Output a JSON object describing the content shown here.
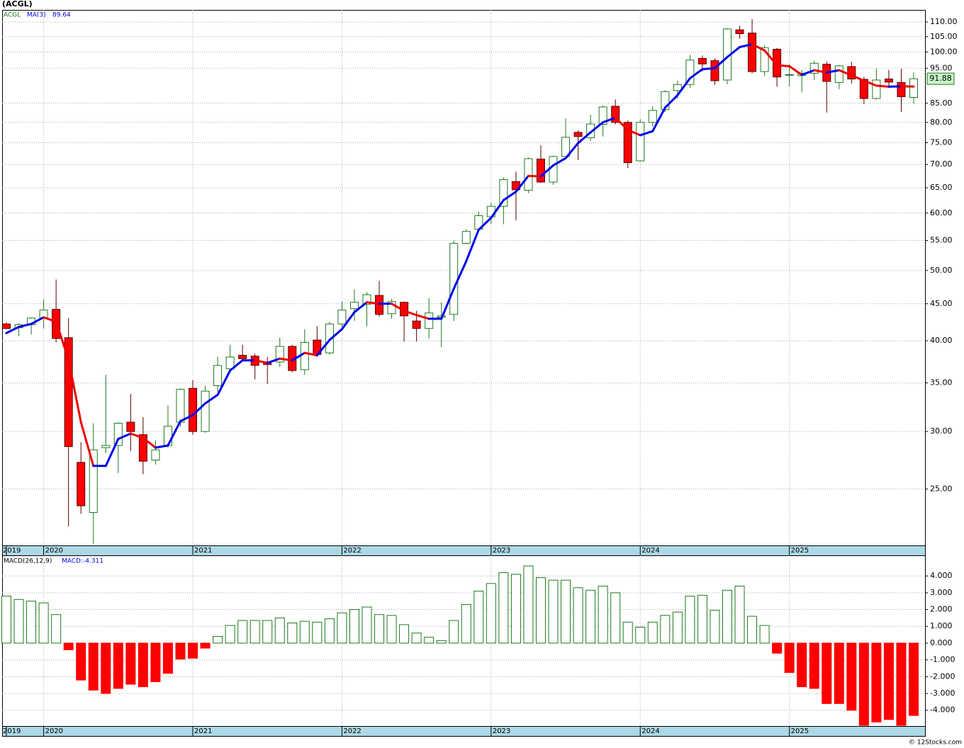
{
  "chart_data": [
    {
      "type": "candlestick",
      "title": "(ACGL)",
      "categories": [
        "2019",
        null,
        null,
        "2020",
        null,
        null,
        null,
        null,
        null,
        null,
        null,
        null,
        null,
        null,
        null,
        "2021",
        null,
        null,
        null,
        null,
        null,
        null,
        null,
        null,
        null,
        null,
        null,
        "2022",
        null,
        null,
        null,
        null,
        null,
        null,
        null,
        null,
        null,
        null,
        null,
        "2023",
        null,
        null,
        null,
        null,
        null,
        null,
        null,
        null,
        null,
        null,
        null,
        "2024",
        null,
        null,
        null,
        null,
        null,
        null,
        null,
        null,
        null,
        null,
        null,
        "2025",
        null,
        null,
        null,
        null,
        null,
        null,
        null,
        null,
        null,
        null
      ],
      "series": [
        {
          "name": "ACGL",
          "color": "#1f7a1f",
          "down_color": "#ff0000",
          "open": [
            42.2,
            41.7,
            42.1,
            43.0,
            44.2,
            40.4,
            27.2,
            23.2,
            28.5,
            28.7,
            30.9,
            29.7,
            27.4,
            28.7,
            30.9,
            34.4,
            30.0,
            34.7,
            36.6,
            38.2,
            38.1,
            37.4,
            37.4,
            39.3,
            36.5,
            40.1,
            38.5,
            42.2,
            44.3,
            44.9,
            46.2,
            43.6,
            45.2,
            42.6,
            41.6,
            43.1,
            43.5,
            54.5,
            57.0,
            59.3,
            61.3,
            66.3,
            64.5,
            71.2,
            66.2,
            71.8,
            77.5,
            76.2,
            79.5,
            84.2,
            80.0,
            70.8,
            80.0,
            83.3,
            88.5,
            90.2,
            98.0,
            97.3,
            91.5,
            107.3,
            106.2,
            94.0,
            100.9,
            93.0,
            92.8,
            93.5,
            96.2,
            90.8,
            95.5,
            91.7,
            86.3,
            91.8,
            90.8,
            86.6
          ],
          "high": [
            42.4,
            42.3,
            43.1,
            45.6,
            48.6,
            43.0,
            29.0,
            30.8,
            35.9,
            30.9,
            33.8,
            31.4,
            29.2,
            32.6,
            34.4,
            35.3,
            34.7,
            38.0,
            39.5,
            39.5,
            38.4,
            38.0,
            40.4,
            39.5,
            41.5,
            41.9,
            42.5,
            45.3,
            47.1,
            46.7,
            48.4,
            45.7,
            45.3,
            44.0,
            45.8,
            45.2,
            55.0,
            57.0,
            60.3,
            62.0,
            67.2,
            68.4,
            71.6,
            74.4,
            72.0,
            81.0,
            78.0,
            82.0,
            84.4,
            86.0,
            80.5,
            80.8,
            84.2,
            88.6,
            91.3,
            99.1,
            98.9,
            98.0,
            107.9,
            108.7,
            111.0,
            102.2,
            101.3,
            96.3,
            94.5,
            97.3,
            97.0,
            96.0,
            97.0,
            92.4,
            94.9,
            94.5,
            94.8,
            93.7
          ],
          "low": [
            41.5,
            40.6,
            40.8,
            41.6,
            39.8,
            22.2,
            23.1,
            21.0,
            28.0,
            26.3,
            28.2,
            26.2,
            27.0,
            28.5,
            30.5,
            29.7,
            29.9,
            34.0,
            36.3,
            37.5,
            35.4,
            34.9,
            36.8,
            36.2,
            35.9,
            38.1,
            38.3,
            41.8,
            42.6,
            41.9,
            43.2,
            42.9,
            39.9,
            39.9,
            40.3,
            39.2,
            42.6,
            54.3,
            56.9,
            58.0,
            57.9,
            58.6,
            63.9,
            66.0,
            65.6,
            71.2,
            71.0,
            75.4,
            76.5,
            79.5,
            69.2,
            70.6,
            79.0,
            82.7,
            86.2,
            89.3,
            94.0,
            90.1,
            90.3,
            104.3,
            93.5,
            92.7,
            89.6,
            89.7,
            88.0,
            91.5,
            82.5,
            88.9,
            90.5,
            84.8,
            86.0,
            89.4,
            82.7,
            84.9
          ],
          "close": [
            41.6,
            42.1,
            43.0,
            44.1,
            40.3,
            28.6,
            23.7,
            28.3,
            28.7,
            30.8,
            30.0,
            27.3,
            28.3,
            30.5,
            34.3,
            30.0,
            34.1,
            37.0,
            38.0,
            37.8,
            37.0,
            37.1,
            39.3,
            36.4,
            39.8,
            38.3,
            42.2,
            44.1,
            45.2,
            46.3,
            43.5,
            45.3,
            43.3,
            41.6,
            43.7,
            43.3,
            54.5,
            56.6,
            59.5,
            61.3,
            66.7,
            64.6,
            71.3,
            66.2,
            71.8,
            76.3,
            76.5,
            79.6,
            84.0,
            80.0,
            70.4,
            80.0,
            83.1,
            88.2,
            90.2,
            97.5,
            96.3,
            91.3,
            107.6,
            106.0,
            94.0,
            101.4,
            92.4,
            93.1,
            93.5,
            96.5,
            91.1,
            95.7,
            91.8,
            86.3,
            91.5,
            90.9,
            86.8,
            91.88
          ]
        },
        {
          "name": "MA(3)",
          "color": "#0000ee",
          "down_color": "#ee0000",
          "values": [
            41.0,
            41.8,
            42.2,
            43.1,
            42.5,
            37.7,
            30.9,
            26.9,
            26.9,
            29.3,
            29.8,
            29.4,
            28.5,
            28.7,
            31.0,
            31.6,
            32.8,
            33.7,
            36.4,
            37.6,
            37.6,
            37.3,
            37.8,
            37.6,
            38.5,
            38.2,
            40.1,
            41.5,
            43.8,
            45.2,
            45.0,
            45.0,
            44.0,
            43.4,
            42.9,
            42.9,
            47.2,
            51.5,
            56.9,
            59.1,
            62.5,
            64.2,
            67.5,
            67.4,
            69.8,
            71.4,
            74.9,
            77.5,
            80.0,
            81.2,
            78.1,
            76.8,
            77.8,
            83.8,
            87.2,
            92.0,
            94.7,
            95.0,
            98.4,
            101.6,
            102.5,
            100.5,
            95.9,
            95.6,
            93.0,
            94.4,
            93.7,
            94.4,
            92.9,
            91.3,
            89.9,
            89.6,
            89.7,
            89.64
          ]
        }
      ],
      "log_scale": true,
      "grid": true,
      "ylim": [
        20.9,
        114.3
      ],
      "yticks": [
        {
          "value": 25,
          "label": "25.00"
        },
        {
          "value": 30,
          "label": "30.00"
        },
        {
          "value": 35,
          "label": "35.00"
        },
        {
          "value": 40,
          "label": "40.00"
        },
        {
          "value": 45,
          "label": "45.00"
        },
        {
          "value": 50,
          "label": "50.00"
        },
        {
          "value": 55,
          "label": "55.00"
        },
        {
          "value": 60,
          "label": "60.00"
        },
        {
          "value": 65,
          "label": "65.00"
        },
        {
          "value": 70,
          "label": "70.00"
        },
        {
          "value": 75,
          "label": "75.00"
        },
        {
          "value": 80,
          "label": "80.00"
        },
        {
          "value": 85,
          "label": "85.00"
        },
        {
          "value": 95,
          "label": "95.00"
        },
        {
          "value": 100,
          "label": "100.00"
        },
        {
          "value": 105,
          "label": "105.00"
        },
        {
          "value": 110,
          "label": "110.00"
        }
      ]
    },
    {
      "type": "bar",
      "categories": [
        "2019",
        null,
        null,
        "2020",
        null,
        null,
        null,
        null,
        null,
        null,
        null,
        null,
        null,
        null,
        null,
        "2021",
        null,
        null,
        null,
        null,
        null,
        null,
        null,
        null,
        null,
        null,
        null,
        "2022",
        null,
        null,
        null,
        null,
        null,
        null,
        null,
        null,
        null,
        null,
        null,
        "2023",
        null,
        null,
        null,
        null,
        null,
        null,
        null,
        null,
        null,
        null,
        null,
        "2024",
        null,
        null,
        null,
        null,
        null,
        null,
        null,
        null,
        null,
        null,
        null,
        "2025",
        null,
        null,
        null,
        null,
        null,
        null,
        null,
        null,
        null,
        null
      ],
      "series": [
        {
          "name": "MACD(26,12,9)",
          "label": "MACD:",
          "color": "#1f7a1f",
          "down_color": "#ff0000",
          "values": [
            2.8,
            2.6,
            2.5,
            2.4,
            1.7,
            -0.4,
            -2.2,
            -2.8,
            -3.0,
            -2.7,
            -2.45,
            -2.6,
            -2.3,
            -1.8,
            -0.95,
            -0.9,
            -0.3,
            0.4,
            1.05,
            1.35,
            1.35,
            1.35,
            1.5,
            1.2,
            1.3,
            1.25,
            1.45,
            1.8,
            2.0,
            2.15,
            1.7,
            1.65,
            1.1,
            0.6,
            0.35,
            0.15,
            1.35,
            2.3,
            3.1,
            3.55,
            4.2,
            4.1,
            4.6,
            3.9,
            3.75,
            3.75,
            3.3,
            3.15,
            3.4,
            3.0,
            1.25,
            0.95,
            1.25,
            1.65,
            1.85,
            2.8,
            2.85,
            1.95,
            3.15,
            3.4,
            1.6,
            1.05,
            -0.6,
            -1.75,
            -2.6,
            -2.7,
            -3.6,
            -3.6,
            -4.0,
            -4.9,
            -4.7,
            -4.55,
            -4.9,
            -4.311
          ]
        }
      ],
      "ylim": [
        -4.94,
        5.23
      ],
      "grid": true,
      "yticks": [
        {
          "value": -4,
          "label": "-4.000"
        },
        {
          "value": -3,
          "label": "-3.000"
        },
        {
          "value": -2,
          "label": "-2.000"
        },
        {
          "value": -1,
          "label": "-1.000"
        },
        {
          "value": 0,
          "label": "0.000"
        },
        {
          "value": 1,
          "label": "1.000"
        },
        {
          "value": 2,
          "label": "2.000"
        },
        {
          "value": 3,
          "label": "3.000"
        },
        {
          "value": 4,
          "label": "4.000"
        }
      ]
    }
  ],
  "footer": "© 12Stocks.com"
}
